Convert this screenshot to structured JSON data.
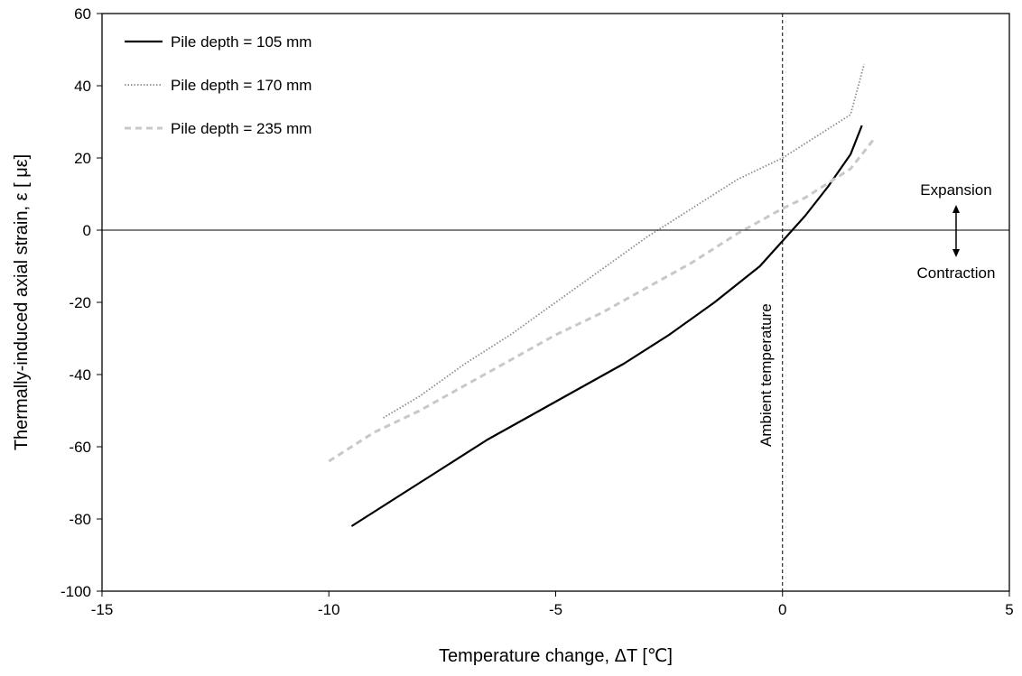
{
  "chart_data": {
    "type": "line",
    "title": "",
    "xlabel": "Temperature change, ΔT [℃]",
    "ylabel": "Thermally-induced axial strain, ε [ με]",
    "xlim": [
      -15,
      5
    ],
    "ylim": [
      -100,
      60
    ],
    "xticks": [
      "-15",
      "-10",
      "-5",
      "0",
      "5"
    ],
    "yticks": [
      "-100",
      "-80",
      "-60",
      "-40",
      "-20",
      "0",
      "20",
      "40",
      "60"
    ],
    "grid": false,
    "legend_position": "top-left",
    "series": [
      {
        "name": "Pile depth = 105 mm",
        "color": "#000000",
        "style": "solid",
        "x": [
          -9.5,
          -8.5,
          -7.5,
          -6.5,
          -5.5,
          -4.5,
          -3.5,
          -2.5,
          -1.5,
          -0.5,
          0,
          0.5,
          1.0,
          1.5,
          1.75
        ],
        "y": [
          -82,
          -74,
          -66,
          -58,
          -51,
          -44,
          -37,
          -29,
          -20,
          -10,
          -3,
          4,
          12,
          21,
          29
        ]
      },
      {
        "name": "Pile depth = 170 mm",
        "color": "#8c8c8c",
        "style": "dotted",
        "x": [
          -8.8,
          -8.0,
          -7.0,
          -6.0,
          -5.0,
          -4.0,
          -3.0,
          -2.0,
          -1.0,
          0,
          0.5,
          1.0,
          1.5,
          1.8
        ],
        "y": [
          -52,
          -46,
          -37,
          -29,
          -20,
          -11,
          -2,
          6,
          14,
          20,
          24,
          28,
          32,
          46
        ]
      },
      {
        "name": "Pile depth = 235 mm",
        "color": "#c8c8c8",
        "style": "dashed",
        "x": [
          -10.0,
          -9.5,
          -9.0,
          -8.0,
          -7.0,
          -6.0,
          -5.0,
          -4.0,
          -3.0,
          -2.0,
          -1.0,
          0,
          0.5,
          1.0,
          1.5,
          2.0
        ],
        "y": [
          -64,
          -60,
          -56,
          -50,
          -43,
          -36,
          -29,
          -23,
          -16,
          -9,
          -1,
          6,
          9,
          13,
          17,
          25
        ]
      }
    ],
    "annotations": {
      "vertical_line_label": "Ambient temperature",
      "expansion_label": "Expansion",
      "contraction_label": "Contraction"
    }
  }
}
